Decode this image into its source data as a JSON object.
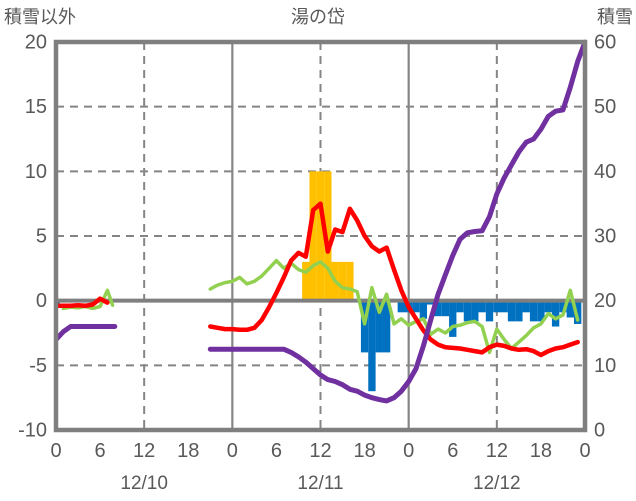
{
  "header": {
    "left_axis_title": "積雪以外",
    "chart_title": "湯の岱",
    "right_axis_title": "積雪"
  },
  "chart_data": {
    "type": "combo",
    "title": "湯の岱",
    "left_axis": {
      "label": "積雪以外",
      "min": -10,
      "max": 20,
      "ticks": [
        20,
        15,
        10,
        5,
        0,
        -5,
        -10
      ]
    },
    "right_axis": {
      "label": "積雪",
      "min": 0,
      "max": 60,
      "ticks": [
        60,
        50,
        40,
        30,
        20,
        10,
        0
      ]
    },
    "x_axis": {
      "total_hours": 72,
      "tick_hours": [
        0,
        6,
        12,
        18,
        24,
        30,
        36,
        42,
        48,
        54,
        60,
        66,
        72
      ],
      "tick_labels": [
        "0",
        "6",
        "12",
        "18",
        "0",
        "6",
        "12",
        "18",
        "0",
        "6",
        "12",
        "18",
        "0"
      ],
      "date_labels": [
        {
          "label": "12/10",
          "hour": 12
        },
        {
          "label": "12/11",
          "hour": 36
        },
        {
          "label": "12/12",
          "hour": 60
        }
      ]
    },
    "grid": {
      "h_dashed_left_values": [
        15,
        10,
        5,
        -5
      ],
      "v_solid_hours": [
        24,
        48
      ],
      "v_dashed_hours": [
        12,
        36,
        60
      ],
      "zero_line_left_value": 0
    },
    "colors": {
      "red_line": "#FF0000",
      "green_line": "#92D050",
      "purple_line": "#7030A0",
      "yellow_bars": "#FFC000",
      "blue_bars": "#0070C0",
      "frame": "#7F7F7F",
      "grid": "#858585",
      "text": "#595959",
      "background": "#FFFFFF"
    },
    "series": [
      {
        "name": "yellow-bars",
        "type": "bar",
        "axis": "left",
        "color": "#FFC000",
        "points": [
          [
            34,
            3
          ],
          [
            35,
            10
          ],
          [
            36,
            10
          ],
          [
            37,
            10
          ],
          [
            38,
            3
          ],
          [
            39,
            3
          ],
          [
            40,
            3
          ]
        ]
      },
      {
        "name": "blue-bars",
        "type": "bar",
        "axis": "left",
        "color": "#0070C0",
        "points": [
          [
            0,
            -0.4
          ],
          [
            42,
            -4
          ],
          [
            43,
            -7
          ],
          [
            44,
            -4
          ],
          [
            45,
            -4
          ],
          [
            47,
            -0.9
          ],
          [
            48,
            -0.9
          ],
          [
            49,
            -0.9
          ],
          [
            50,
            -1.4
          ],
          [
            51,
            -0.3
          ],
          [
            52,
            -1.2
          ],
          [
            53,
            -1.2
          ],
          [
            54,
            -2.8
          ],
          [
            55,
            -0.9
          ],
          [
            56,
            -1.6
          ],
          [
            57,
            -1.6
          ],
          [
            58,
            -0.9
          ],
          [
            59,
            -1.6
          ],
          [
            60,
            -0.9
          ],
          [
            61,
            -0.9
          ],
          [
            62,
            -1.6
          ],
          [
            63,
            -1.6
          ],
          [
            64,
            -0.9
          ],
          [
            65,
            -1.6
          ],
          [
            66,
            -1.6
          ],
          [
            67,
            -0.9
          ],
          [
            68,
            -2.0
          ],
          [
            69,
            -0.9
          ],
          [
            70,
            -1.3
          ],
          [
            71,
            -1.8
          ]
        ]
      },
      {
        "name": "green-line",
        "type": "line",
        "axis": "left",
        "color": "#92D050",
        "width": 3.5,
        "segments": [
          [
            [
              1,
              -0.6
            ],
            [
              2,
              -0.5
            ],
            [
              3,
              -0.55
            ],
            [
              4,
              -0.45
            ],
            [
              5,
              -0.6
            ],
            [
              6,
              -0.45
            ],
            [
              7,
              0.8
            ],
            [
              7.7,
              -0.35
            ]
          ],
          [
            [
              21,
              0.9
            ],
            [
              22,
              1.2
            ],
            [
              23,
              1.4
            ],
            [
              24,
              1.5
            ],
            [
              25,
              1.8
            ],
            [
              26,
              1.3
            ],
            [
              27,
              1.5
            ],
            [
              28,
              1.9
            ],
            [
              29,
              2.5
            ],
            [
              30,
              3.1
            ],
            [
              31,
              2.5
            ],
            [
              32,
              2.9
            ],
            [
              33,
              2.4
            ],
            [
              34,
              2.2
            ],
            [
              35,
              2.7
            ],
            [
              36,
              3.0
            ],
            [
              37,
              2.5
            ],
            [
              38,
              1.5
            ],
            [
              39,
              1.0
            ],
            [
              40,
              0.9
            ],
            [
              41,
              0.7
            ],
            [
              42,
              -1.8
            ],
            [
              43,
              1.0
            ],
            [
              44,
              -0.9
            ],
            [
              45,
              0.5
            ],
            [
              46,
              -1.8
            ],
            [
              47,
              -1.4
            ],
            [
              48,
              -1.9
            ],
            [
              49,
              -1.6
            ],
            [
              50,
              -1.4
            ],
            [
              51,
              -2.6
            ],
            [
              52,
              -2.2
            ],
            [
              53,
              -2.5
            ],
            [
              54,
              -2.0
            ],
            [
              55,
              -1.9
            ],
            [
              56,
              -1.7
            ],
            [
              57,
              -1.6
            ],
            [
              58,
              -2.0
            ],
            [
              59,
              -4.0
            ],
            [
              60,
              -2.2
            ],
            [
              61,
              -3.0
            ],
            [
              62,
              -3.7
            ],
            [
              63,
              -3.2
            ],
            [
              64,
              -2.7
            ],
            [
              65,
              -2.1
            ],
            [
              66,
              -1.8
            ],
            [
              67,
              -1.0
            ],
            [
              68,
              -1.4
            ],
            [
              69,
              -1.1
            ],
            [
              70,
              0.8
            ],
            [
              71,
              -1.5
            ]
          ]
        ]
      },
      {
        "name": "red-line",
        "type": "line",
        "axis": "left",
        "color": "#FF0000",
        "width": 4.5,
        "segments": [
          [
            [
              0,
              -0.4
            ],
            [
              1,
              -0.4
            ],
            [
              2,
              -0.4
            ],
            [
              3,
              -0.35
            ],
            [
              4,
              -0.4
            ],
            [
              5,
              -0.3
            ],
            [
              6,
              0.15
            ],
            [
              7,
              -0.15
            ]
          ],
          [
            [
              21,
              -2.0
            ],
            [
              22,
              -2.1
            ],
            [
              23,
              -2.2
            ],
            [
              24,
              -2.2
            ],
            [
              25,
              -2.25
            ],
            [
              26,
              -2.25
            ],
            [
              27,
              -2.1
            ],
            [
              28,
              -1.5
            ],
            [
              29,
              -0.5
            ],
            [
              30,
              0.6
            ],
            [
              31,
              1.8
            ],
            [
              32,
              3.1
            ],
            [
              33,
              3.7
            ],
            [
              34,
              3.4
            ],
            [
              35,
              7.0
            ],
            [
              36,
              7.5
            ],
            [
              37,
              3.8
            ],
            [
              38,
              5.5
            ],
            [
              39,
              5.3
            ],
            [
              40,
              7.1
            ],
            [
              41,
              6.2
            ],
            [
              42,
              5.0
            ],
            [
              43,
              4.2
            ],
            [
              44,
              3.8
            ],
            [
              45,
              4.1
            ],
            [
              46,
              2.4
            ],
            [
              47,
              0.8
            ],
            [
              48,
              -0.5
            ],
            [
              49,
              -1.4
            ],
            [
              50,
              -2.3
            ],
            [
              51,
              -3.0
            ],
            [
              52,
              -3.4
            ],
            [
              53,
              -3.6
            ],
            [
              54,
              -3.65
            ],
            [
              55,
              -3.7
            ],
            [
              56,
              -3.8
            ],
            [
              57,
              -3.9
            ],
            [
              58,
              -4.0
            ],
            [
              59,
              -3.6
            ],
            [
              60,
              -3.4
            ],
            [
              61,
              -3.5
            ],
            [
              62,
              -3.7
            ],
            [
              63,
              -3.8
            ],
            [
              64,
              -3.75
            ],
            [
              65,
              -3.9
            ],
            [
              66,
              -4.2
            ],
            [
              67,
              -3.9
            ],
            [
              68,
              -3.7
            ],
            [
              69,
              -3.6
            ],
            [
              70,
              -3.4
            ],
            [
              71,
              -3.2
            ]
          ]
        ]
      },
      {
        "name": "purple-line",
        "type": "line",
        "axis": "right",
        "color": "#7030A0",
        "width": 5,
        "segments": [
          [
            [
              0,
              14
            ],
            [
              1,
              15.2
            ],
            [
              2,
              16
            ],
            [
              3,
              16
            ],
            [
              4,
              16
            ],
            [
              5,
              16
            ],
            [
              6,
              16
            ],
            [
              7,
              16
            ],
            [
              8,
              16
            ]
          ],
          [
            [
              21,
              12.5
            ],
            [
              22,
              12.5
            ],
            [
              23,
              12.5
            ],
            [
              24,
              12.5
            ],
            [
              25,
              12.5
            ],
            [
              26,
              12.5
            ],
            [
              27,
              12.5
            ],
            [
              28,
              12.5
            ],
            [
              29,
              12.5
            ],
            [
              30,
              12.5
            ],
            [
              31,
              12.5
            ],
            [
              32,
              12
            ],
            [
              33,
              11.3
            ],
            [
              34,
              10.5
            ],
            [
              35,
              9.5
            ],
            [
              36,
              8.5
            ],
            [
              37,
              7.8
            ],
            [
              38,
              7.5
            ],
            [
              39,
              7
            ],
            [
              40,
              6.3
            ],
            [
              41,
              6
            ],
            [
              42,
              5.4
            ],
            [
              43,
              5
            ],
            [
              44,
              4.7
            ],
            [
              45,
              4.5
            ],
            [
              46,
              5
            ],
            [
              47,
              6
            ],
            [
              48,
              7.5
            ],
            [
              49,
              9.5
            ],
            [
              50,
              13
            ],
            [
              51,
              17
            ],
            [
              52,
              21
            ],
            [
              53,
              24
            ],
            [
              54,
              27
            ],
            [
              55,
              29.5
            ],
            [
              56,
              30.5
            ],
            [
              57,
              30.7
            ],
            [
              58,
              30.8
            ],
            [
              59,
              33
            ],
            [
              60,
              36.5
            ],
            [
              61,
              39
            ],
            [
              62,
              41
            ],
            [
              63,
              43
            ],
            [
              64,
              44.5
            ],
            [
              65,
              45
            ],
            [
              66,
              46.5
            ],
            [
              67,
              48.5
            ],
            [
              68,
              49.3
            ],
            [
              69,
              49.5
            ],
            [
              70,
              53
            ],
            [
              71,
              57
            ],
            [
              72,
              60
            ]
          ]
        ]
      }
    ]
  }
}
